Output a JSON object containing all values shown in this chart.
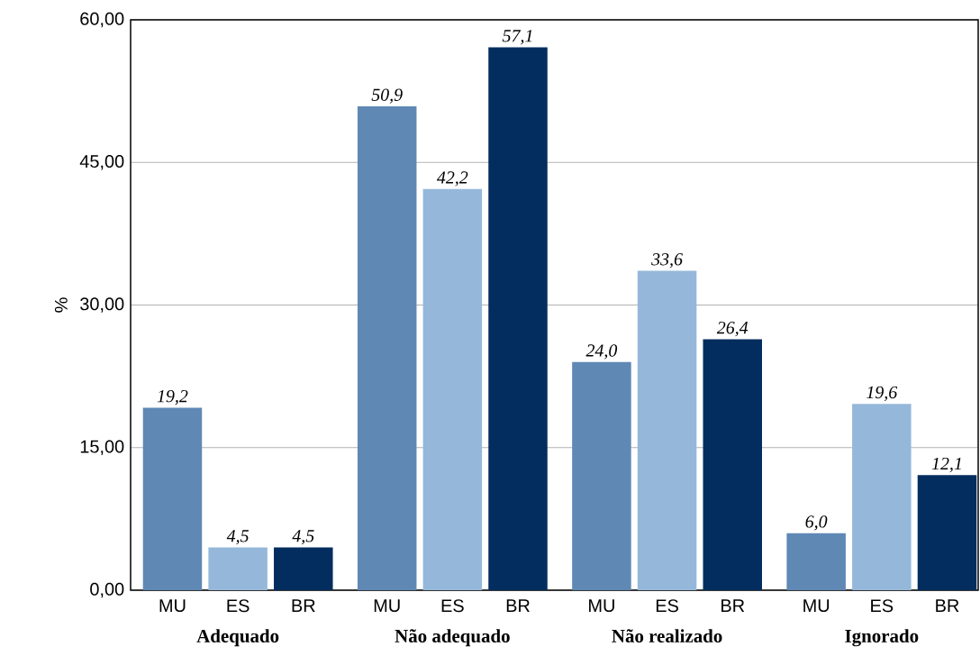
{
  "chart_data": {
    "type": "bar",
    "ylabel": "%",
    "categories": [
      "Adequado",
      "Não adequado",
      "Não realizado",
      "Ignorado"
    ],
    "series": [
      {
        "name": "MU",
        "color": "#5f88b5",
        "values": [
          19.2,
          50.9,
          24.0,
          6.0
        ],
        "value_labels": [
          "19,2",
          "50,9",
          "24,0",
          "6,0"
        ]
      },
      {
        "name": "ES",
        "color": "#95b8da",
        "values": [
          4.5,
          42.2,
          33.6,
          19.6
        ],
        "value_labels": [
          "4,5",
          "42,2",
          "33,6",
          "19,6"
        ]
      },
      {
        "name": "BR",
        "color": "#042d5f",
        "values": [
          4.5,
          57.1,
          26.4,
          12.1
        ],
        "value_labels": [
          "4,5",
          "57,1",
          "26,4",
          "12,1"
        ]
      }
    ],
    "ylim": [
      0,
      60
    ],
    "yticks": [
      {
        "value": 0,
        "label": "0,00"
      },
      {
        "value": 15,
        "label": "15,00"
      },
      {
        "value": 30,
        "label": "30,00"
      },
      {
        "value": 45,
        "label": "45,00"
      },
      {
        "value": 60,
        "label": "60,00"
      }
    ],
    "grid": "y",
    "legend": false
  }
}
